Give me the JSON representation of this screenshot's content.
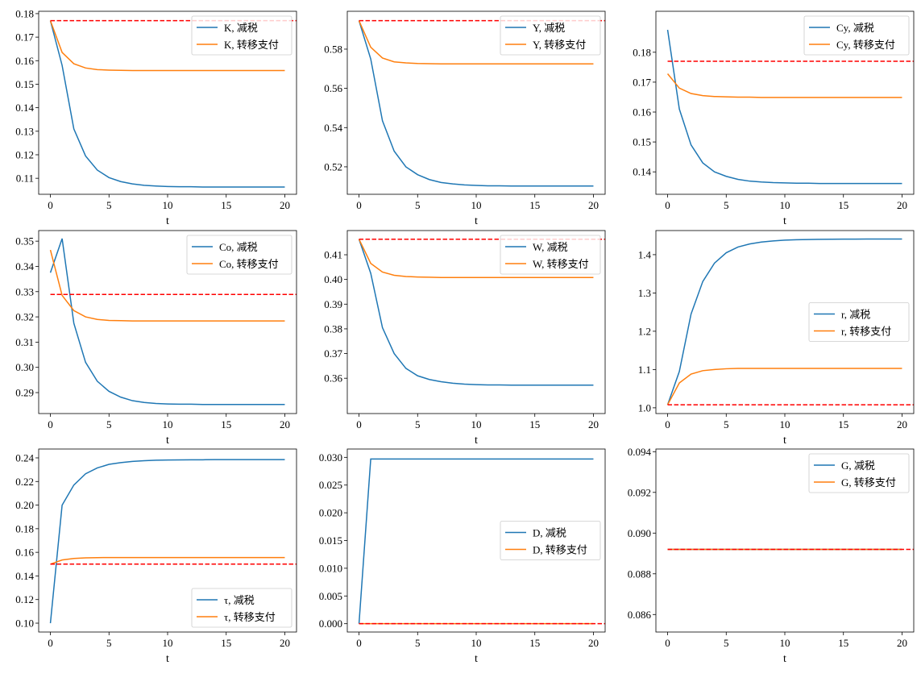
{
  "colors": {
    "tax_cut": "#1f77b4",
    "transfer": "#ff7f0e",
    "baseline": "#ff0000"
  },
  "chart_data": [
    {
      "type": "line",
      "xlabel": "t",
      "xlim": [
        -1,
        21
      ],
      "ylim": [
        0.1032,
        0.181
      ],
      "xticks": [
        "0",
        "5",
        "10",
        "15",
        "20"
      ],
      "yticks": [
        0.11,
        0.12,
        0.13,
        0.14,
        0.15,
        0.16,
        0.17,
        0.18
      ],
      "ytick_labels": [
        "0.11",
        "0.12",
        "0.13",
        "0.14",
        "0.15",
        "0.16",
        "0.17",
        "0.18"
      ],
      "legend": "upper right",
      "baseline": 0.177,
      "series": [
        {
          "name": "K, 减税",
          "values": [
            0.177,
            0.158,
            0.131,
            0.1195,
            0.1135,
            0.1103,
            0.1086,
            0.1076,
            0.107,
            0.1067,
            0.1065,
            0.1064,
            0.1064,
            0.1063,
            0.1063,
            0.1063,
            0.1063,
            0.1063,
            0.1063,
            0.1063,
            0.1063
          ]
        },
        {
          "name": "K, 转移支付",
          "values": [
            0.177,
            0.1635,
            0.1587,
            0.1569,
            0.1562,
            0.156,
            0.1559,
            0.1558,
            0.1558,
            0.1558,
            0.1558,
            0.1558,
            0.1558,
            0.1558,
            0.1558,
            0.1558,
            0.1558,
            0.1558,
            0.1558,
            0.1558,
            0.1558
          ]
        }
      ]
    },
    {
      "type": "line",
      "xlabel": "t",
      "xlim": [
        -1,
        21
      ],
      "ylim": [
        0.506,
        0.5993
      ],
      "xticks": [
        "0",
        "5",
        "10",
        "15",
        "20"
      ],
      "yticks": [
        0.52,
        0.54,
        0.56,
        0.58
      ],
      "ytick_labels": [
        "0.52",
        "0.54",
        "0.56",
        "0.58"
      ],
      "legend": "upper right",
      "baseline": 0.5945,
      "series": [
        {
          "name": "Y, 减税",
          "values": [
            0.5945,
            0.575,
            0.5435,
            0.528,
            0.52,
            0.516,
            0.5135,
            0.512,
            0.5113,
            0.5108,
            0.5105,
            0.5103,
            0.5103,
            0.5102,
            0.5102,
            0.5102,
            0.5102,
            0.5102,
            0.5102,
            0.5102,
            0.5102
          ]
        },
        {
          "name": "Y, 转移支付",
          "values": [
            0.5945,
            0.581,
            0.5755,
            0.5735,
            0.573,
            0.5727,
            0.5726,
            0.5725,
            0.5725,
            0.5725,
            0.5725,
            0.5725,
            0.5725,
            0.5725,
            0.5725,
            0.5725,
            0.5725,
            0.5725,
            0.5725,
            0.5725,
            0.5725
          ]
        }
      ]
    },
    {
      "type": "line",
      "xlabel": "t",
      "xlim": [
        -1,
        21
      ],
      "ylim": [
        0.1325,
        0.1937
      ],
      "xticks": [
        "0",
        "5",
        "10",
        "15",
        "20"
      ],
      "yticks": [
        0.14,
        0.15,
        0.16,
        0.17,
        0.18
      ],
      "ytick_labels": [
        "0.14",
        "0.15",
        "0.16",
        "0.17",
        "0.18"
      ],
      "legend": "upper right",
      "baseline": 0.177,
      "series": [
        {
          "name": "Cy, 减税",
          "values": [
            0.1875,
            0.161,
            0.149,
            0.143,
            0.14,
            0.1385,
            0.1375,
            0.1369,
            0.1366,
            0.1364,
            0.1363,
            0.1362,
            0.1362,
            0.1361,
            0.1361,
            0.1361,
            0.1361,
            0.1361,
            0.1361,
            0.1361,
            0.1361
          ]
        },
        {
          "name": "Cy, 转移支付",
          "values": [
            0.1728,
            0.168,
            0.1662,
            0.1655,
            0.1652,
            0.1651,
            0.165,
            0.165,
            0.1649,
            0.1649,
            0.1649,
            0.1649,
            0.1649,
            0.1649,
            0.1649,
            0.1649,
            0.1649,
            0.1649,
            0.1649,
            0.1649,
            0.1649
          ]
        }
      ]
    },
    {
      "type": "line",
      "xlabel": "t",
      "xlim": [
        -1,
        21
      ],
      "ylim": [
        0.2817,
        0.3542
      ],
      "xticks": [
        "0",
        "5",
        "10",
        "15",
        "20"
      ],
      "yticks": [
        0.29,
        0.3,
        0.31,
        0.32,
        0.33,
        0.34,
        0.35
      ],
      "ytick_labels": [
        "0.29",
        "0.30",
        "0.31",
        "0.32",
        "0.33",
        "0.34",
        "0.35"
      ],
      "legend": "upper right",
      "baseline": 0.3289,
      "series": [
        {
          "name": "Co, 减税",
          "values": [
            0.3375,
            0.351,
            0.3175,
            0.302,
            0.2945,
            0.2905,
            0.2882,
            0.2868,
            0.2861,
            0.2857,
            0.2855,
            0.2854,
            0.2854,
            0.2853,
            0.2853,
            0.2853,
            0.2853,
            0.2853,
            0.2853,
            0.2853,
            0.2853
          ]
        },
        {
          "name": "Co, 转移支付",
          "values": [
            0.3465,
            0.3285,
            0.3225,
            0.32,
            0.319,
            0.3186,
            0.3185,
            0.3184,
            0.3184,
            0.3184,
            0.3184,
            0.3184,
            0.3184,
            0.3184,
            0.3184,
            0.3184,
            0.3184,
            0.3184,
            0.3184,
            0.3184,
            0.3184
          ]
        }
      ]
    },
    {
      "type": "line",
      "xlabel": "t",
      "xlim": [
        -1,
        21
      ],
      "ylim": [
        0.3457,
        0.4198
      ],
      "xticks": [
        "0",
        "5",
        "10",
        "15",
        "20"
      ],
      "yticks": [
        0.36,
        0.37,
        0.38,
        0.39,
        0.4,
        0.41
      ],
      "ytick_labels": [
        "0.36",
        "0.37",
        "0.38",
        "0.39",
        "0.40",
        "0.41"
      ],
      "legend": "upper right",
      "baseline": 0.4163,
      "series": [
        {
          "name": "W, 减税",
          "values": [
            0.4163,
            0.4025,
            0.3805,
            0.37,
            0.364,
            0.361,
            0.3595,
            0.3586,
            0.358,
            0.3576,
            0.3574,
            0.3573,
            0.3573,
            0.3572,
            0.3572,
            0.3572,
            0.3572,
            0.3572,
            0.3572,
            0.3572,
            0.3572
          ]
        },
        {
          "name": "W, 转移支付",
          "values": [
            0.4163,
            0.4065,
            0.403,
            0.4017,
            0.4012,
            0.401,
            0.4009,
            0.4008,
            0.4008,
            0.4008,
            0.4008,
            0.4008,
            0.4008,
            0.4008,
            0.4008,
            0.4008,
            0.4008,
            0.4008,
            0.4008,
            0.4008,
            0.4008
          ]
        }
      ]
    },
    {
      "type": "line",
      "xlabel": "t",
      "xlim": [
        -1,
        21
      ],
      "ylim": [
        0.985,
        1.463
      ],
      "xticks": [
        "0",
        "5",
        "10",
        "15",
        "20"
      ],
      "yticks": [
        1.0,
        1.1,
        1.2,
        1.3,
        1.4
      ],
      "ytick_labels": [
        "1.0",
        "1.1",
        "1.2",
        "1.3",
        "1.4"
      ],
      "legend": "center right",
      "baseline": 1.008,
      "series": [
        {
          "name": "r, 减税",
          "values": [
            1.008,
            1.095,
            1.245,
            1.33,
            1.378,
            1.405,
            1.42,
            1.428,
            1.433,
            1.436,
            1.438,
            1.439,
            1.4395,
            1.44,
            1.4403,
            1.4405,
            1.4407,
            1.4408,
            1.4409,
            1.441,
            1.441
          ]
        },
        {
          "name": "r, 转移支付",
          "values": [
            1.008,
            1.065,
            1.088,
            1.097,
            1.1,
            1.102,
            1.103,
            1.103,
            1.103,
            1.103,
            1.103,
            1.103,
            1.103,
            1.103,
            1.103,
            1.103,
            1.103,
            1.103,
            1.103,
            1.103,
            1.103
          ]
        }
      ]
    },
    {
      "type": "line",
      "xlabel": "t",
      "xlim": [
        -1,
        21
      ],
      "ylim": [
        0.0925,
        0.2475
      ],
      "xticks": [
        "0",
        "5",
        "10",
        "15",
        "20"
      ],
      "yticks": [
        0.1,
        0.12,
        0.14,
        0.16,
        0.18,
        0.2,
        0.22,
        0.24
      ],
      "ytick_labels": [
        "0.10",
        "0.12",
        "0.14",
        "0.16",
        "0.18",
        "0.20",
        "0.22",
        "0.24"
      ],
      "legend": "lower right",
      "baseline": 0.15,
      "series": [
        {
          "name": "τ, 减税",
          "values": [
            0.1,
            0.2,
            0.217,
            0.2265,
            0.2315,
            0.2345,
            0.236,
            0.237,
            0.2376,
            0.238,
            0.2382,
            0.2383,
            0.2384,
            0.2384,
            0.2385,
            0.2385,
            0.2385,
            0.2385,
            0.2385,
            0.2385,
            0.2385
          ]
        },
        {
          "name": "τ, 转移支付",
          "values": [
            0.15,
            0.1535,
            0.1548,
            0.1553,
            0.1555,
            0.1556,
            0.1556,
            0.1556,
            0.1556,
            0.1556,
            0.1556,
            0.1556,
            0.1556,
            0.1556,
            0.1556,
            0.1556,
            0.1556,
            0.1556,
            0.1556,
            0.1556,
            0.1556
          ]
        }
      ]
    },
    {
      "type": "line",
      "xlabel": "t",
      "xlim": [
        -1,
        21
      ],
      "ylim": [
        -0.0015,
        0.0315
      ],
      "xticks": [
        "0",
        "5",
        "10",
        "15",
        "20"
      ],
      "yticks": [
        0,
        0.005,
        0.01,
        0.015,
        0.02,
        0.025,
        0.03
      ],
      "ytick_labels": [
        "0.000",
        "0.005",
        "0.010",
        "0.015",
        "0.020",
        "0.025",
        "0.030"
      ],
      "legend": "center right",
      "baseline": 0,
      "series": [
        {
          "name": "D, 减税",
          "values": [
            0,
            0.0297,
            0.0297,
            0.0297,
            0.0297,
            0.0297,
            0.0297,
            0.0297,
            0.0297,
            0.0297,
            0.0297,
            0.0297,
            0.0297,
            0.0297,
            0.0297,
            0.0297,
            0.0297,
            0.0297,
            0.0297,
            0.0297,
            0.0297
          ]
        },
        {
          "name": "D, 转移支付",
          "values": [
            0,
            0,
            0,
            0,
            0,
            0,
            0,
            0,
            0,
            0,
            0,
            0,
            0,
            0,
            0,
            0,
            0,
            0,
            0,
            0,
            0
          ]
        }
      ]
    },
    {
      "type": "line",
      "xlabel": "t",
      "xlim": [
        -1,
        21
      ],
      "ylim": [
        0.08514,
        0.09413
      ],
      "xticks": [
        "0",
        "5",
        "10",
        "15",
        "20"
      ],
      "yticks": [
        0.086,
        0.088,
        0.09,
        0.092,
        0.094
      ],
      "ytick_labels": [
        "0.086",
        "0.088",
        "0.090",
        "0.092",
        "0.094"
      ],
      "legend": "upper right",
      "baseline": 0.0892,
      "series": [
        {
          "name": "G, 减税",
          "values": [
            0.0892,
            0.0892,
            0.0892,
            0.0892,
            0.0892,
            0.0892,
            0.0892,
            0.0892,
            0.0892,
            0.0892,
            0.0892,
            0.0892,
            0.0892,
            0.0892,
            0.0892,
            0.0892,
            0.0892,
            0.0892,
            0.0892,
            0.0892,
            0.0892
          ]
        },
        {
          "name": "G, 转移支付",
          "values": [
            0.0892,
            0.0892,
            0.0892,
            0.0892,
            0.0892,
            0.0892,
            0.0892,
            0.0892,
            0.0892,
            0.0892,
            0.0892,
            0.0892,
            0.0892,
            0.0892,
            0.0892,
            0.0892,
            0.0892,
            0.0892,
            0.0892,
            0.0892,
            0.0892
          ]
        }
      ]
    }
  ]
}
